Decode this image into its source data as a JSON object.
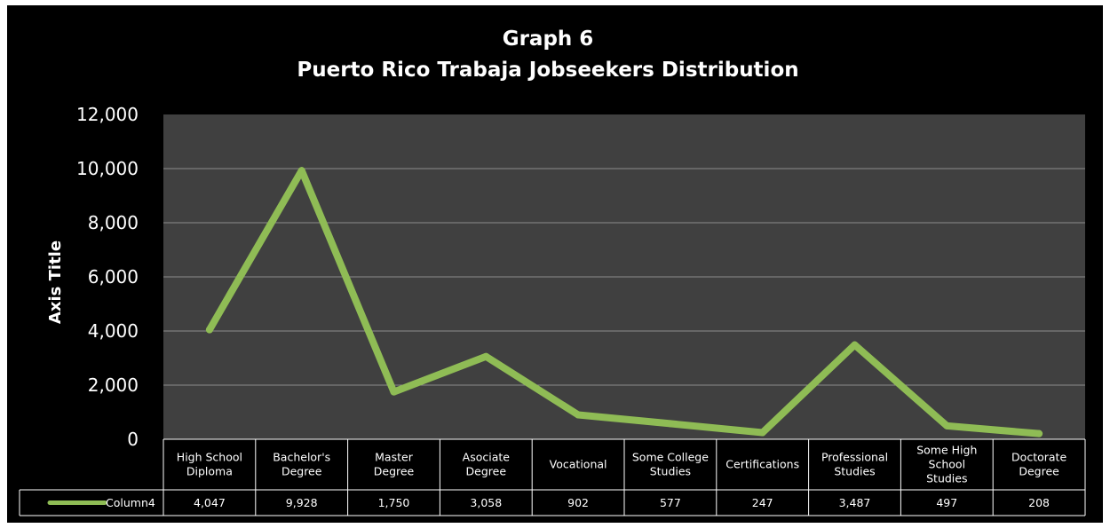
{
  "chart_data": {
    "type": "line",
    "title": "Graph 6",
    "subtitle": "Puerto Rico Trabaja Jobseekers Distribution",
    "xlabel": "",
    "ylabel": "Axis Title",
    "ylim": [
      0,
      12000
    ],
    "yticks": [
      "0",
      "2,000",
      "4,000",
      "6,000",
      "8,000",
      "10,000",
      "12,000"
    ],
    "grid": true,
    "legend": "data-table-left",
    "categories": [
      [
        "High School",
        "Diploma"
      ],
      [
        "Bachelor's",
        "Degree"
      ],
      [
        "Master",
        "Degree"
      ],
      [
        "Asociate",
        "Degree"
      ],
      [
        "Vocational"
      ],
      [
        "Some College",
        "Studies"
      ],
      [
        "Certifications"
      ],
      [
        "Professional",
        "Studies"
      ],
      [
        "Some High",
        "School",
        "Studies"
      ],
      [
        "Doctorate",
        "Degree"
      ]
    ],
    "series": [
      {
        "name": "Column4",
        "values": [
          4047,
          9928,
          1750,
          3058,
          902,
          577,
          247,
          3487,
          497,
          208
        ],
        "labels": [
          "4,047",
          "9,928",
          "1,750",
          "3,058",
          "902",
          "577",
          "247",
          "3,487",
          "497",
          "208"
        ],
        "color": "#8fbc55"
      }
    ]
  },
  "colors": {
    "background": "#000000",
    "plot_area": "#404040",
    "gridline": "#8c8c8c",
    "line": "#8fbc55",
    "text": "#ffffff"
  }
}
